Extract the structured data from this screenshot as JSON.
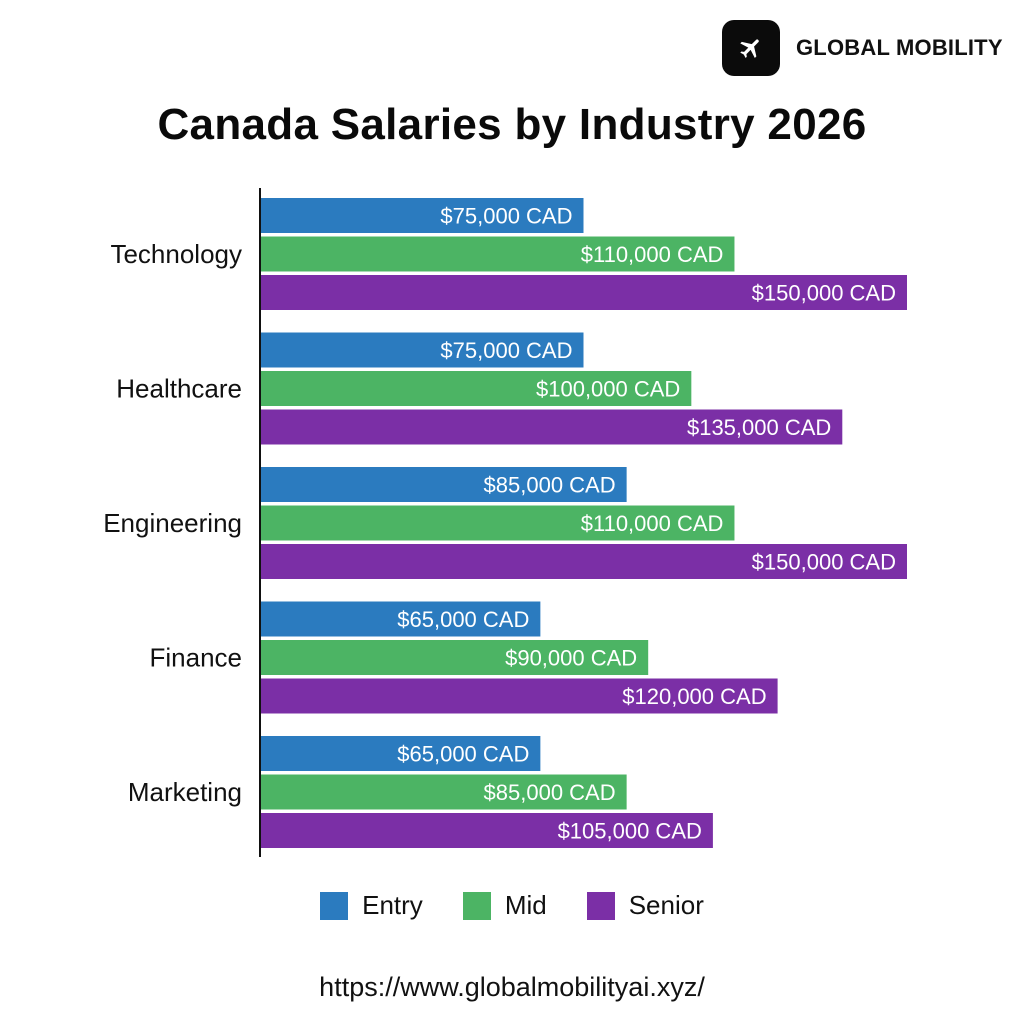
{
  "brand": {
    "name": "GLOBAL MOBILITY",
    "icon": "airplane-icon"
  },
  "footer": {
    "url": "https://www.globalmobilityai.xyz/"
  },
  "chart_data": {
    "type": "bar",
    "orientation": "horizontal",
    "title": "Canada Salaries by Industry 2026",
    "categories": [
      "Technology",
      "Healthcare",
      "Engineering",
      "Finance",
      "Marketing"
    ],
    "series": [
      {
        "name": "Entry",
        "color": "#2b7bbf",
        "values": [
          75000,
          75000,
          85000,
          65000,
          65000
        ],
        "labels": [
          "$75,000 CAD",
          "$75,000 CAD",
          "$85,000 CAD",
          "$65,000 CAD",
          "$65,000 CAD"
        ]
      },
      {
        "name": "Mid",
        "color": "#4cb464",
        "values": [
          110000,
          100000,
          110000,
          90000,
          85000
        ],
        "labels": [
          "$110,000 CAD",
          "$100,000 CAD",
          "$110,000 CAD",
          "$90,000 CAD",
          "$85,000 CAD"
        ]
      },
      {
        "name": "Senior",
        "color": "#7b2fa6",
        "values": [
          150000,
          135000,
          150000,
          120000,
          105000
        ],
        "labels": [
          "$150,000 CAD",
          "$135,000 CAD",
          "$150,000 CAD",
          "$120,000 CAD",
          "$105,000 CAD"
        ]
      }
    ],
    "xlabel": "",
    "ylabel": "",
    "grid": false,
    "legend_position": "bottom"
  }
}
